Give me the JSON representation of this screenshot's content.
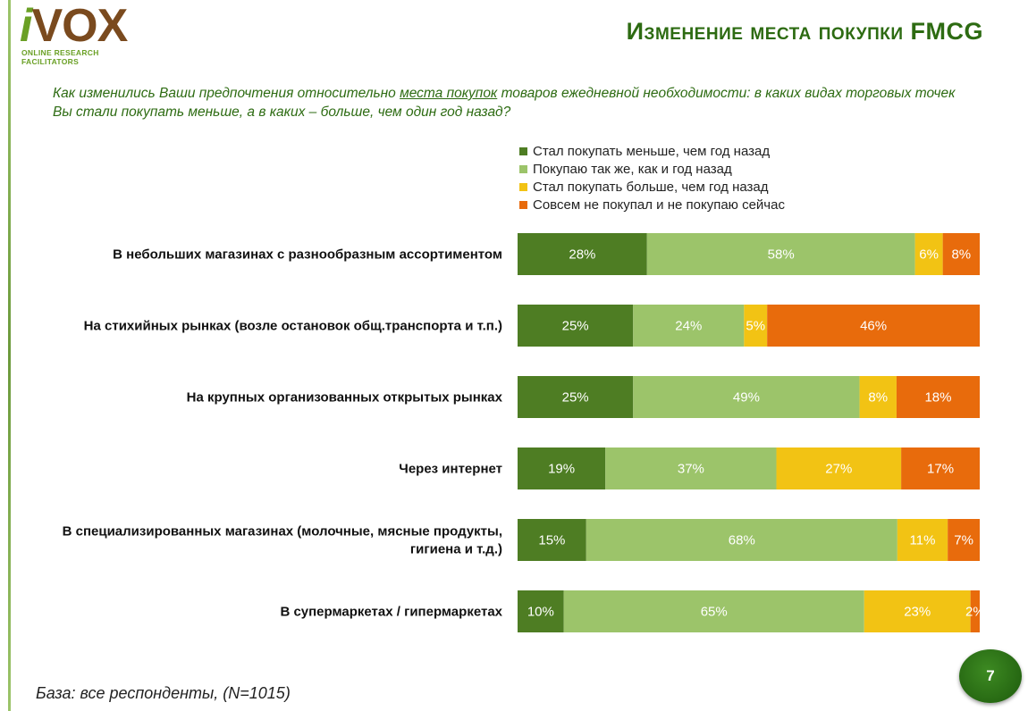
{
  "logo": {
    "mark_i": "i",
    "mark_vox": "VOX",
    "tagline": "ONLINE RESEARCH FACILITATORS"
  },
  "header": {
    "title": "Изменение места покупки FMCG"
  },
  "question": {
    "before": "Как изменились Ваши предпочтения относительно ",
    "underlined": "места покупок",
    "after": " товаров ежедневной необходимости: в каких видах торговых точек Вы стали покупать меньше, а в каких – больше, чем один год назад?"
  },
  "footer": {
    "base": "База: все респонденты, (N=1015)",
    "page_number": "7"
  },
  "colors": {
    "less": "#4e7d23",
    "same": "#9cc46a",
    "more": "#f2c314",
    "never": "#e86b0c",
    "title": "#2d6b12"
  },
  "chart_data": {
    "type": "bar",
    "orientation": "horizontal",
    "stacked": true,
    "percent": true,
    "legend_position": "top",
    "categories": [
      "В небольших магазинах с разнообразным ассортиментом",
      "На стихийных рынках (возле остановок общ.транспорта и т.п.)",
      "На крупных организованных открытых рынках",
      "Через интернет",
      "В специализированных магазинах (молочные, мясные продукты, гигиена и т.д.)",
      "В супермаркетах / гипермаркетах"
    ],
    "category_lines": [
      [
        "В небольших магазинах с разнообразным ассортиментом"
      ],
      [
        "На стихийных рынках (возле остановок общ.транспорта и т.п.)"
      ],
      [
        "На крупных организованных открытых рынках"
      ],
      [
        "Через интернет"
      ],
      [
        "В специализированных магазинах (молочные, мясные продукты,",
        "гигиена и т.д.)"
      ],
      [
        "В супермаркетах / гипермаркетах"
      ]
    ],
    "series": [
      {
        "name": "Стал покупать меньше, чем год назад",
        "color": "#4e7d23",
        "values": [
          28,
          25,
          25,
          19,
          15,
          10
        ]
      },
      {
        "name": "Покупаю так же, как и год назад",
        "color": "#9cc46a",
        "values": [
          58,
          24,
          49,
          37,
          68,
          65
        ]
      },
      {
        "name": "Стал покупать больше, чем год назад",
        "color": "#f2c314",
        "values": [
          6,
          5,
          8,
          27,
          11,
          23
        ]
      },
      {
        "name": "Совсем не покупал и не покупаю сейчас",
        "color": "#e86b0c",
        "values": [
          8,
          46,
          18,
          17,
          7,
          2
        ]
      }
    ],
    "value_suffix": "%"
  }
}
